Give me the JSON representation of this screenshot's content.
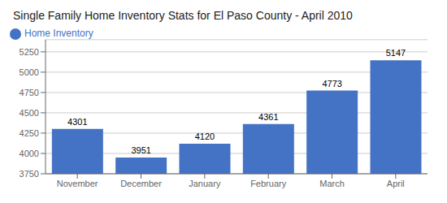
{
  "chart_data": {
    "type": "bar",
    "title": "Single Family Home Inventory Stats for El Paso County - April 2010",
    "categories": [
      "November",
      "December",
      "January",
      "February",
      "March",
      "April"
    ],
    "series": [
      {
        "name": "Home Inventory",
        "color": "#4472C4",
        "values": [
          4301,
          3951,
          4120,
          4361,
          4773,
          5147
        ]
      }
    ],
    "ylim": [
      3750,
      5400
    ],
    "yticks": [
      3750,
      4000,
      4250,
      4500,
      4750,
      5000,
      5250
    ],
    "grid": true,
    "legend": "upper left",
    "data_labels": true
  }
}
